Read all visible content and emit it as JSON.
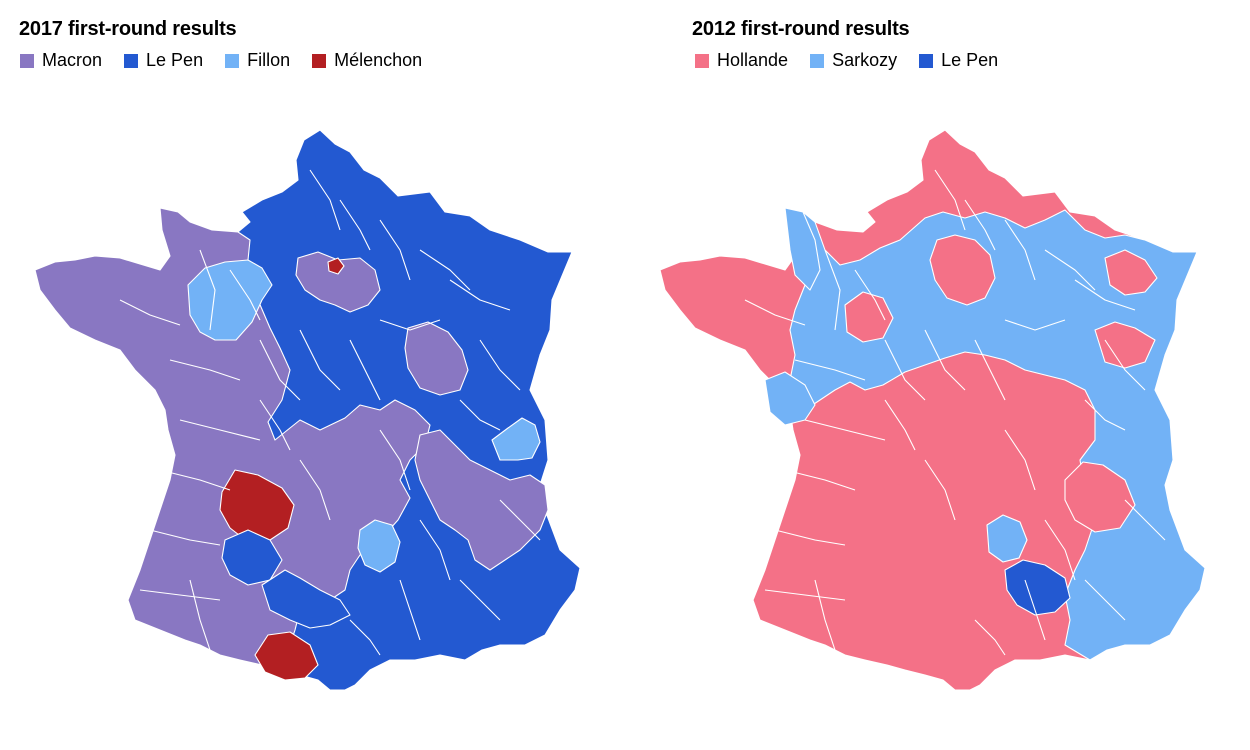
{
  "maps": [
    {
      "title": "2017 first-round results",
      "legend": [
        {
          "label": "Macron",
          "color": "#8977c2"
        },
        {
          "label": "Le Pen",
          "color": "#2359d1"
        },
        {
          "label": "Fillon",
          "color": "#72b2f6"
        },
        {
          "label": "Mélenchon",
          "color": "#b31f22"
        }
      ],
      "base_color": "#2359d1"
    },
    {
      "title": "2012 first-round results",
      "legend": [
        {
          "label": "Hollande",
          "color": "#f47187"
        },
        {
          "label": "Sarkozy",
          "color": "#72b2f6"
        },
        {
          "label": "Le Pen",
          "color": "#2359d1"
        }
      ],
      "base_color": "#f47187"
    }
  ]
}
